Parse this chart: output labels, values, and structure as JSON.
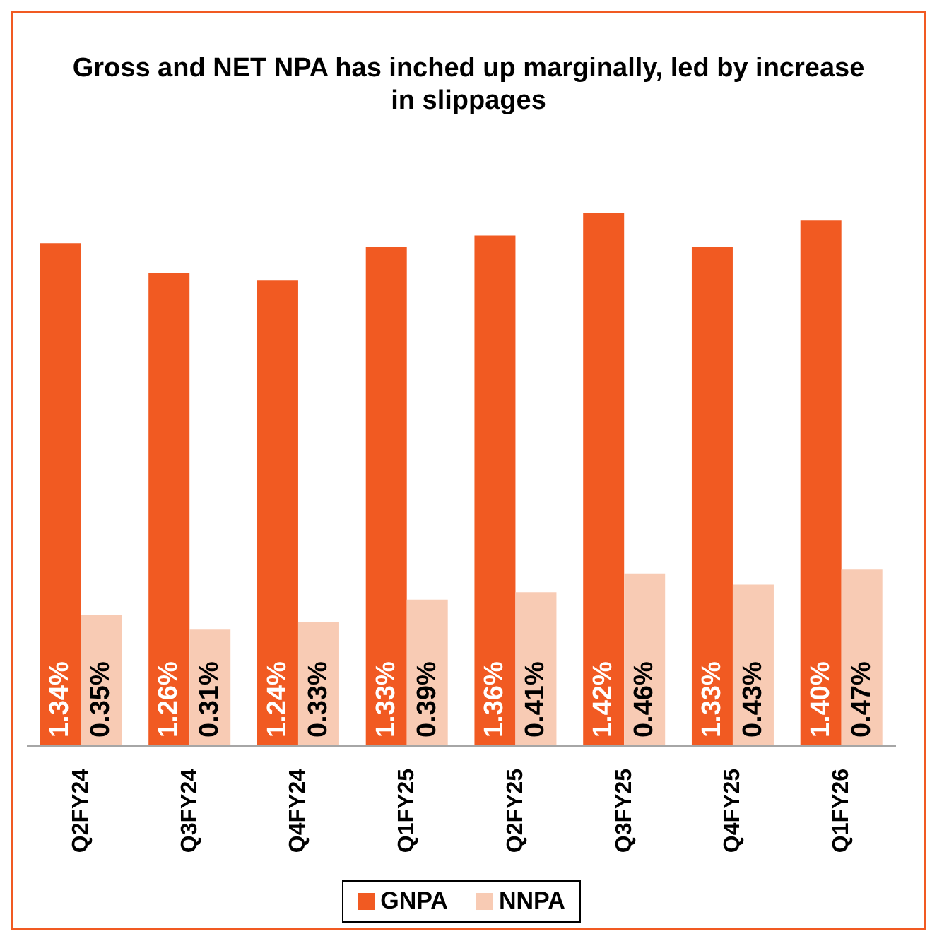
{
  "chart_data": {
    "type": "bar",
    "title": "Gross and NET NPA has inched up marginally, led by increase in slippages",
    "categories": [
      "Q2FY24",
      "Q3FY24",
      "Q4FY24",
      "Q1FY25",
      "Q2FY25",
      "Q3FY25",
      "Q4FY25",
      "Q1FY26"
    ],
    "series": [
      {
        "name": "GNPA",
        "color": "#f15a22",
        "values": [
          1.34,
          1.26,
          1.24,
          1.33,
          1.36,
          1.42,
          1.33,
          1.4
        ],
        "value_labels": [
          "1.34%",
          "1.26%",
          "1.24%",
          "1.33%",
          "1.36%",
          "1.42%",
          "1.33%",
          "1.40%"
        ]
      },
      {
        "name": "NNPA",
        "color": "#f8cbb4",
        "values": [
          0.35,
          0.31,
          0.33,
          0.39,
          0.41,
          0.46,
          0.43,
          0.47
        ],
        "value_labels": [
          "0.35%",
          "0.31%",
          "0.33%",
          "0.39%",
          "0.41%",
          "0.46%",
          "0.43%",
          "0.47%"
        ]
      }
    ],
    "legend": "bottom",
    "grid": false
  }
}
